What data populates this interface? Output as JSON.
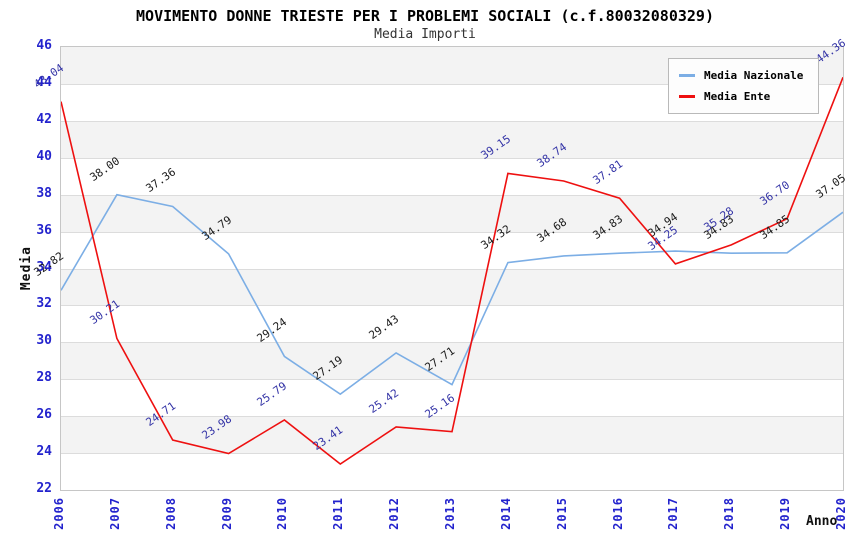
{
  "style": {
    "background": "#ffffff",
    "tick_color": "#2323cd",
    "band_gray": "#f3f3f3",
    "gridline_color": "#dcdcdc",
    "plot_border_color": "#c6c6c6",
    "legend_border_color": "#b9b9b9",
    "legend_background": "#fdfdfd"
  },
  "chart_data": {
    "type": "line",
    "title": "MOVIMENTO DONNE TRIESTE PER I PROBLEMI SOCIALI (c.f.80032080329)",
    "subtitle": "Media Importi",
    "xlabel": "Anno",
    "ylabel": "Media",
    "categories": [
      "2006",
      "2007",
      "2008",
      "2009",
      "2010",
      "2011",
      "2012",
      "2013",
      "2014",
      "2015",
      "2016",
      "2017",
      "2018",
      "2019",
      "2020"
    ],
    "series": [
      {
        "name": "Media Nazionale",
        "color": "#7caee5",
        "label_color": "#1a1a1a",
        "values": [
          32.82,
          38.0,
          37.36,
          34.79,
          29.24,
          27.19,
          29.43,
          27.71,
          34.32,
          34.68,
          34.83,
          34.94,
          34.83,
          34.85,
          37.05
        ]
      },
      {
        "name": "Media Ente",
        "color": "#ee1010",
        "label_color": "#3333a6",
        "values": [
          43.04,
          30.21,
          24.71,
          23.98,
          25.79,
          23.41,
          25.42,
          25.16,
          39.15,
          38.74,
          37.81,
          34.25,
          35.28,
          36.7,
          44.36
        ]
      }
    ],
    "ylim": [
      22,
      46
    ],
    "y_ticks": [
      46,
      44,
      42,
      40,
      38,
      36,
      34,
      32,
      30,
      28,
      26,
      24,
      22
    ],
    "grid": "horizontal-bands-alternating",
    "legend_position": "top-right",
    "point_label_format": "0.00",
    "point_label_rotation_deg": -35
  }
}
